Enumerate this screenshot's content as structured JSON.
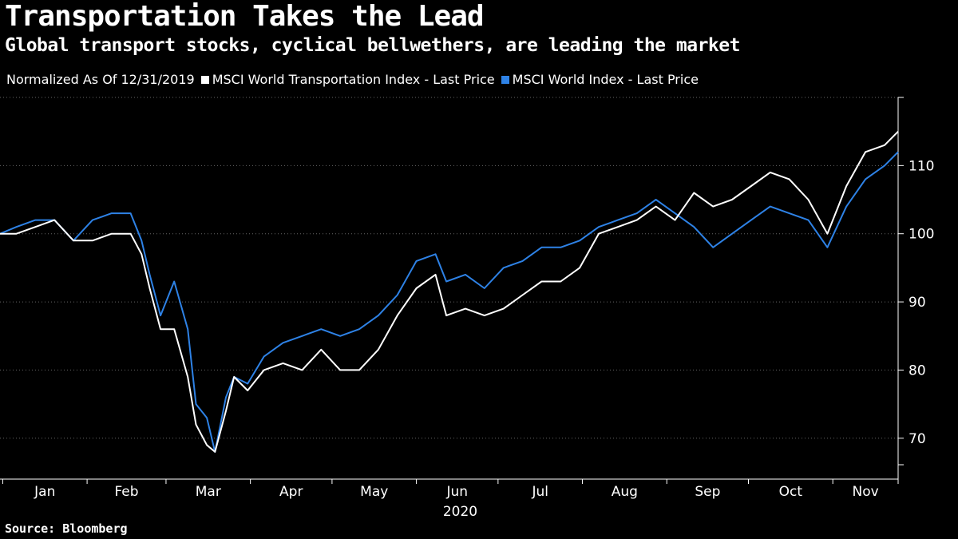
{
  "title": "Transportation Takes the Lead",
  "subtitle": "Global transport stocks, cyclical bellwethers, are leading the market",
  "legend": {
    "note": "Normalized As Of 12/31/2019",
    "items": [
      {
        "label": "MSCI World Transportation Index - Last Price",
        "color": "#ffffff"
      },
      {
        "label": "MSCI World Index - Last Price",
        "color": "#2e82e6"
      }
    ]
  },
  "source": "Source: Bloomberg",
  "chart_data": {
    "type": "line",
    "x_labels": [
      "Jan",
      "Feb",
      "Mar",
      "Apr",
      "May",
      "Jun",
      "Jul",
      "Aug",
      "Sep",
      "Oct",
      "Nov"
    ],
    "x_year_label": "2020",
    "x_range": [
      "2019-12-31",
      "2020-11-25"
    ],
    "y_ticks": [
      70,
      80,
      90,
      100,
      110
    ],
    "ylim": [
      64,
      120
    ],
    "grid": "horizontal dotted",
    "y_axis_position": "right",
    "series": [
      {
        "name": "MSCI World Transportation Index - Last Price",
        "color": "#ffffff",
        "x": [
          "2019-12-31",
          "2020-01-06",
          "2020-01-13",
          "2020-01-20",
          "2020-01-27",
          "2020-02-03",
          "2020-02-10",
          "2020-02-17",
          "2020-02-21",
          "2020-02-24",
          "2020-02-28",
          "2020-03-04",
          "2020-03-09",
          "2020-03-12",
          "2020-03-16",
          "2020-03-19",
          "2020-03-23",
          "2020-03-26",
          "2020-03-31",
          "2020-04-06",
          "2020-04-13",
          "2020-04-20",
          "2020-04-27",
          "2020-05-04",
          "2020-05-11",
          "2020-05-18",
          "2020-05-25",
          "2020-06-01",
          "2020-06-08",
          "2020-06-12",
          "2020-06-19",
          "2020-06-26",
          "2020-07-03",
          "2020-07-10",
          "2020-07-17",
          "2020-07-24",
          "2020-07-31",
          "2020-08-07",
          "2020-08-14",
          "2020-08-21",
          "2020-08-28",
          "2020-09-04",
          "2020-09-11",
          "2020-09-18",
          "2020-09-25",
          "2020-10-02",
          "2020-10-09",
          "2020-10-16",
          "2020-10-23",
          "2020-10-30",
          "2020-11-06",
          "2020-11-13",
          "2020-11-20",
          "2020-11-25"
        ],
        "values": [
          100,
          100,
          101,
          102,
          99,
          99,
          100,
          100,
          97,
          92,
          86,
          86,
          79,
          72,
          69,
          68,
          74,
          79,
          77,
          80,
          81,
          80,
          83,
          80,
          80,
          83,
          88,
          92,
          94,
          88,
          89,
          88,
          89,
          91,
          93,
          93,
          95,
          100,
          101,
          102,
          104,
          102,
          106,
          104,
          105,
          107,
          109,
          108,
          105,
          100,
          107,
          112,
          113,
          115
        ]
      },
      {
        "name": "MSCI World Index - Last Price",
        "color": "#2e82e6",
        "x": [
          "2019-12-31",
          "2020-01-06",
          "2020-01-13",
          "2020-01-20",
          "2020-01-27",
          "2020-02-03",
          "2020-02-10",
          "2020-02-17",
          "2020-02-21",
          "2020-02-24",
          "2020-02-28",
          "2020-03-04",
          "2020-03-09",
          "2020-03-12",
          "2020-03-16",
          "2020-03-19",
          "2020-03-23",
          "2020-03-26",
          "2020-03-31",
          "2020-04-06",
          "2020-04-13",
          "2020-04-20",
          "2020-04-27",
          "2020-05-04",
          "2020-05-11",
          "2020-05-18",
          "2020-05-25",
          "2020-06-01",
          "2020-06-08",
          "2020-06-12",
          "2020-06-19",
          "2020-06-26",
          "2020-07-03",
          "2020-07-10",
          "2020-07-17",
          "2020-07-24",
          "2020-07-31",
          "2020-08-07",
          "2020-08-14",
          "2020-08-21",
          "2020-08-28",
          "2020-09-04",
          "2020-09-11",
          "2020-09-18",
          "2020-09-25",
          "2020-10-02",
          "2020-10-09",
          "2020-10-16",
          "2020-10-23",
          "2020-10-30",
          "2020-11-06",
          "2020-11-13",
          "2020-11-20",
          "2020-11-25"
        ],
        "values": [
          100,
          101,
          102,
          102,
          99,
          102,
          103,
          103,
          99,
          94,
          88,
          93,
          86,
          75,
          73,
          68,
          76,
          79,
          78,
          82,
          84,
          85,
          86,
          85,
          86,
          88,
          91,
          96,
          97,
          93,
          94,
          92,
          95,
          96,
          98,
          98,
          99,
          101,
          102,
          103,
          105,
          103,
          101,
          98,
          100,
          102,
          104,
          103,
          102,
          98,
          104,
          108,
          110,
          112
        ]
      }
    ]
  }
}
